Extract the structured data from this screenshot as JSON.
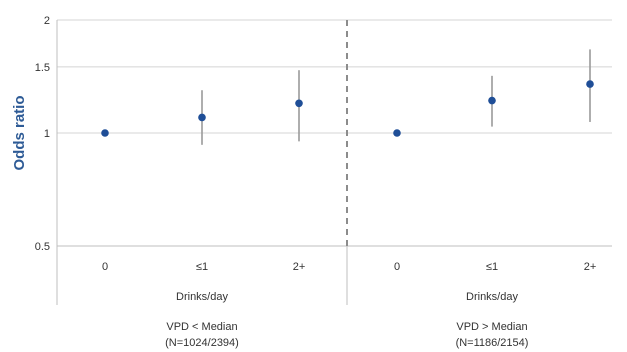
{
  "chart_data": {
    "type": "scatter",
    "title": "",
    "ylabel": "Odds ratio",
    "y_scale": "log",
    "ylim": [
      0.5,
      2
    ],
    "y_ticks": [
      "0.5",
      "1",
      "1.5",
      "2"
    ],
    "y_tick_values": [
      0.5,
      1,
      1.5,
      2
    ],
    "grid": true,
    "marker_color": "#1f4e97",
    "errorbar_color": "#9a9a9a",
    "panels": [
      {
        "group_label": "VPD < Median",
        "group_n": "(N=1024/2394)",
        "xlabel": "Drinks/day",
        "categories": [
          "0",
          "≤1",
          "2+"
        ],
        "values": [
          1.0,
          1.1,
          1.2
        ],
        "lower": [
          1.0,
          0.93,
          0.95
        ],
        "upper": [
          1.0,
          1.3,
          1.47
        ]
      },
      {
        "group_label": "VPD > Median",
        "group_n": "(N=1186/2154)",
        "xlabel": "Drinks/day",
        "categories": [
          "0",
          "≤1",
          "2+"
        ],
        "values": [
          1.0,
          1.22,
          1.35
        ],
        "lower": [
          1.0,
          1.04,
          1.07
        ],
        "upper": [
          1.0,
          1.42,
          1.67
        ]
      }
    ]
  }
}
